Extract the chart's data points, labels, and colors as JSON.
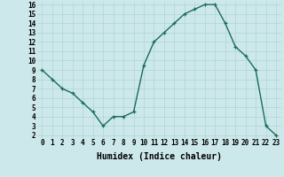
{
  "x": [
    0,
    1,
    2,
    3,
    4,
    5,
    6,
    7,
    8,
    9,
    10,
    11,
    12,
    13,
    14,
    15,
    16,
    17,
    18,
    19,
    20,
    21,
    22,
    23
  ],
  "y": [
    9.0,
    8.0,
    7.0,
    6.5,
    5.5,
    4.5,
    3.0,
    4.0,
    4.0,
    4.5,
    9.5,
    12.0,
    13.0,
    14.0,
    15.0,
    15.5,
    16.0,
    16.0,
    14.0,
    11.5,
    10.5,
    9.0,
    3.0,
    2.0
  ],
  "xlabel": "Humidex (Indice chaleur)",
  "ylim": [
    2,
    16
  ],
  "xlim": [
    -0.5,
    23.5
  ],
  "yticks": [
    2,
    3,
    4,
    5,
    6,
    7,
    8,
    9,
    10,
    11,
    12,
    13,
    14,
    15,
    16
  ],
  "xticks": [
    0,
    1,
    2,
    3,
    4,
    5,
    6,
    7,
    8,
    9,
    10,
    11,
    12,
    13,
    14,
    15,
    16,
    17,
    18,
    19,
    20,
    21,
    22,
    23
  ],
  "line_color": "#1a6b5a",
  "marker": "+",
  "bg_color": "#cce8ea",
  "grid_color": "#b0d4d8",
  "tick_fontsize": 5.5,
  "xlabel_fontsize": 7,
  "linewidth": 1.0,
  "markersize": 3.5,
  "markeredgewidth": 0.9
}
